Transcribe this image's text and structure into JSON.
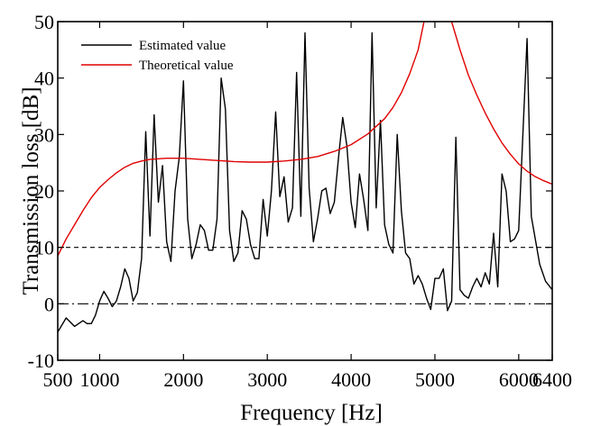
{
  "chart_data": {
    "type": "line",
    "title": "",
    "xlabel": "Frequency [Hz]",
    "ylabel": "Transmission loss [dB]",
    "xlim": [
      500,
      6400
    ],
    "ylim": [
      -10,
      50
    ],
    "x_ticks": [
      500,
      1000,
      2000,
      3000,
      4000,
      5000,
      6000,
      6400
    ],
    "y_ticks": [
      -10,
      0,
      10,
      20,
      30,
      40,
      50
    ],
    "grid": false,
    "legend_placement": "top-left",
    "reference_lines": [
      {
        "y": 10,
        "style": "dashed"
      },
      {
        "y": 0,
        "style": "dash-dot"
      }
    ],
    "series": [
      {
        "name": "Estimated value",
        "color": "#000000",
        "points": [
          [
            500,
            -5
          ],
          [
            600,
            -2.5
          ],
          [
            700,
            -4
          ],
          [
            800,
            -3
          ],
          [
            850,
            -3.5
          ],
          [
            900,
            -3.5
          ],
          [
            950,
            -2
          ],
          [
            1000,
            0.5
          ],
          [
            1050,
            2.2
          ],
          [
            1100,
            1
          ],
          [
            1150,
            -0.5
          ],
          [
            1200,
            0.5
          ],
          [
            1250,
            3
          ],
          [
            1300,
            6.2
          ],
          [
            1350,
            4.5
          ],
          [
            1400,
            0.5
          ],
          [
            1450,
            2
          ],
          [
            1500,
            8
          ],
          [
            1550,
            30.5
          ],
          [
            1600,
            12
          ],
          [
            1650,
            33.5
          ],
          [
            1700,
            18
          ],
          [
            1750,
            24.5
          ],
          [
            1800,
            11
          ],
          [
            1850,
            7.5
          ],
          [
            1900,
            20
          ],
          [
            1950,
            26
          ],
          [
            2000,
            39.5
          ],
          [
            2050,
            15
          ],
          [
            2100,
            8
          ],
          [
            2150,
            10.5
          ],
          [
            2200,
            14
          ],
          [
            2250,
            13
          ],
          [
            2300,
            9.5
          ],
          [
            2350,
            9.5
          ],
          [
            2400,
            15
          ],
          [
            2450,
            40
          ],
          [
            2500,
            34.5
          ],
          [
            2550,
            13
          ],
          [
            2600,
            7.5
          ],
          [
            2650,
            9
          ],
          [
            2700,
            16.5
          ],
          [
            2750,
            15
          ],
          [
            2800,
            10.5
          ],
          [
            2850,
            8
          ],
          [
            2900,
            8
          ],
          [
            2950,
            18.5
          ],
          [
            3000,
            12
          ],
          [
            3050,
            20
          ],
          [
            3100,
            34
          ],
          [
            3150,
            19
          ],
          [
            3200,
            22.5
          ],
          [
            3250,
            14.5
          ],
          [
            3300,
            17
          ],
          [
            3350,
            41
          ],
          [
            3400,
            15.5
          ],
          [
            3450,
            48
          ],
          [
            3500,
            20.5
          ],
          [
            3550,
            11
          ],
          [
            3600,
            15
          ],
          [
            3650,
            20
          ],
          [
            3700,
            20.5
          ],
          [
            3750,
            16
          ],
          [
            3800,
            18
          ],
          [
            3850,
            26
          ],
          [
            3900,
            33
          ],
          [
            3950,
            28
          ],
          [
            4000,
            18
          ],
          [
            4050,
            13.5
          ],
          [
            4100,
            23
          ],
          [
            4150,
            18.5
          ],
          [
            4200,
            13
          ],
          [
            4250,
            48
          ],
          [
            4300,
            17
          ],
          [
            4350,
            32.5
          ],
          [
            4400,
            14
          ],
          [
            4450,
            10.5
          ],
          [
            4500,
            9
          ],
          [
            4550,
            30
          ],
          [
            4600,
            16.5
          ],
          [
            4650,
            9
          ],
          [
            4700,
            8
          ],
          [
            4750,
            3.5
          ],
          [
            4800,
            5
          ],
          [
            4850,
            3.5
          ],
          [
            4900,
            1
          ],
          [
            4950,
            -1
          ],
          [
            5000,
            4.5
          ],
          [
            5050,
            4.5
          ],
          [
            5100,
            6.2
          ],
          [
            5150,
            -1.2
          ],
          [
            5200,
            0.5
          ],
          [
            5250,
            29.5
          ],
          [
            5300,
            2.5
          ],
          [
            5350,
            1.5
          ],
          [
            5400,
            1
          ],
          [
            5450,
            3
          ],
          [
            5500,
            4.5
          ],
          [
            5550,
            3
          ],
          [
            5600,
            5.5
          ],
          [
            5650,
            3.5
          ],
          [
            5700,
            12.5
          ],
          [
            5750,
            3
          ],
          [
            5800,
            23
          ],
          [
            5850,
            20
          ],
          [
            5900,
            11
          ],
          [
            5950,
            11.5
          ],
          [
            6000,
            13
          ],
          [
            6100,
            47
          ],
          [
            6150,
            15.5
          ],
          [
            6250,
            7
          ],
          [
            6320,
            4
          ],
          [
            6400,
            2.5
          ]
        ]
      },
      {
        "name": "Theoretical value",
        "color": "#e00000",
        "points": [
          [
            500,
            8.5
          ],
          [
            600,
            11.5
          ],
          [
            700,
            14
          ],
          [
            800,
            16.5
          ],
          [
            900,
            18.8
          ],
          [
            1000,
            20.6
          ],
          [
            1100,
            22
          ],
          [
            1200,
            23.2
          ],
          [
            1300,
            24.2
          ],
          [
            1400,
            24.9
          ],
          [
            1500,
            25.3
          ],
          [
            1600,
            25.6
          ],
          [
            1700,
            25.7
          ],
          [
            1800,
            25.8
          ],
          [
            1900,
            25.8
          ],
          [
            2000,
            25.8
          ],
          [
            2200,
            25.6
          ],
          [
            2400,
            25.4
          ],
          [
            2600,
            25.2
          ],
          [
            2800,
            25.1
          ],
          [
            3000,
            25.1
          ],
          [
            3200,
            25.3
          ],
          [
            3400,
            25.6
          ],
          [
            3600,
            26.1
          ],
          [
            3800,
            27
          ],
          [
            4000,
            28.2
          ],
          [
            4200,
            30.1
          ],
          [
            4400,
            32.8
          ],
          [
            4500,
            34.8
          ],
          [
            4600,
            37.4
          ],
          [
            4700,
            40.8
          ],
          [
            4800,
            45
          ],
          [
            4870,
            50
          ],
          [
            4950,
            55
          ],
          [
            5050,
            62
          ],
          [
            5100,
            60
          ],
          [
            5150,
            55
          ],
          [
            5200,
            50
          ],
          [
            5300,
            45
          ],
          [
            5400,
            40.5
          ],
          [
            5500,
            37
          ],
          [
            5600,
            33.8
          ],
          [
            5700,
            31
          ],
          [
            5800,
            28.5
          ],
          [
            5900,
            26.5
          ],
          [
            6000,
            24.8
          ],
          [
            6100,
            23.5
          ],
          [
            6200,
            22.5
          ],
          [
            6300,
            21.8
          ],
          [
            6400,
            21.2
          ]
        ]
      }
    ]
  }
}
